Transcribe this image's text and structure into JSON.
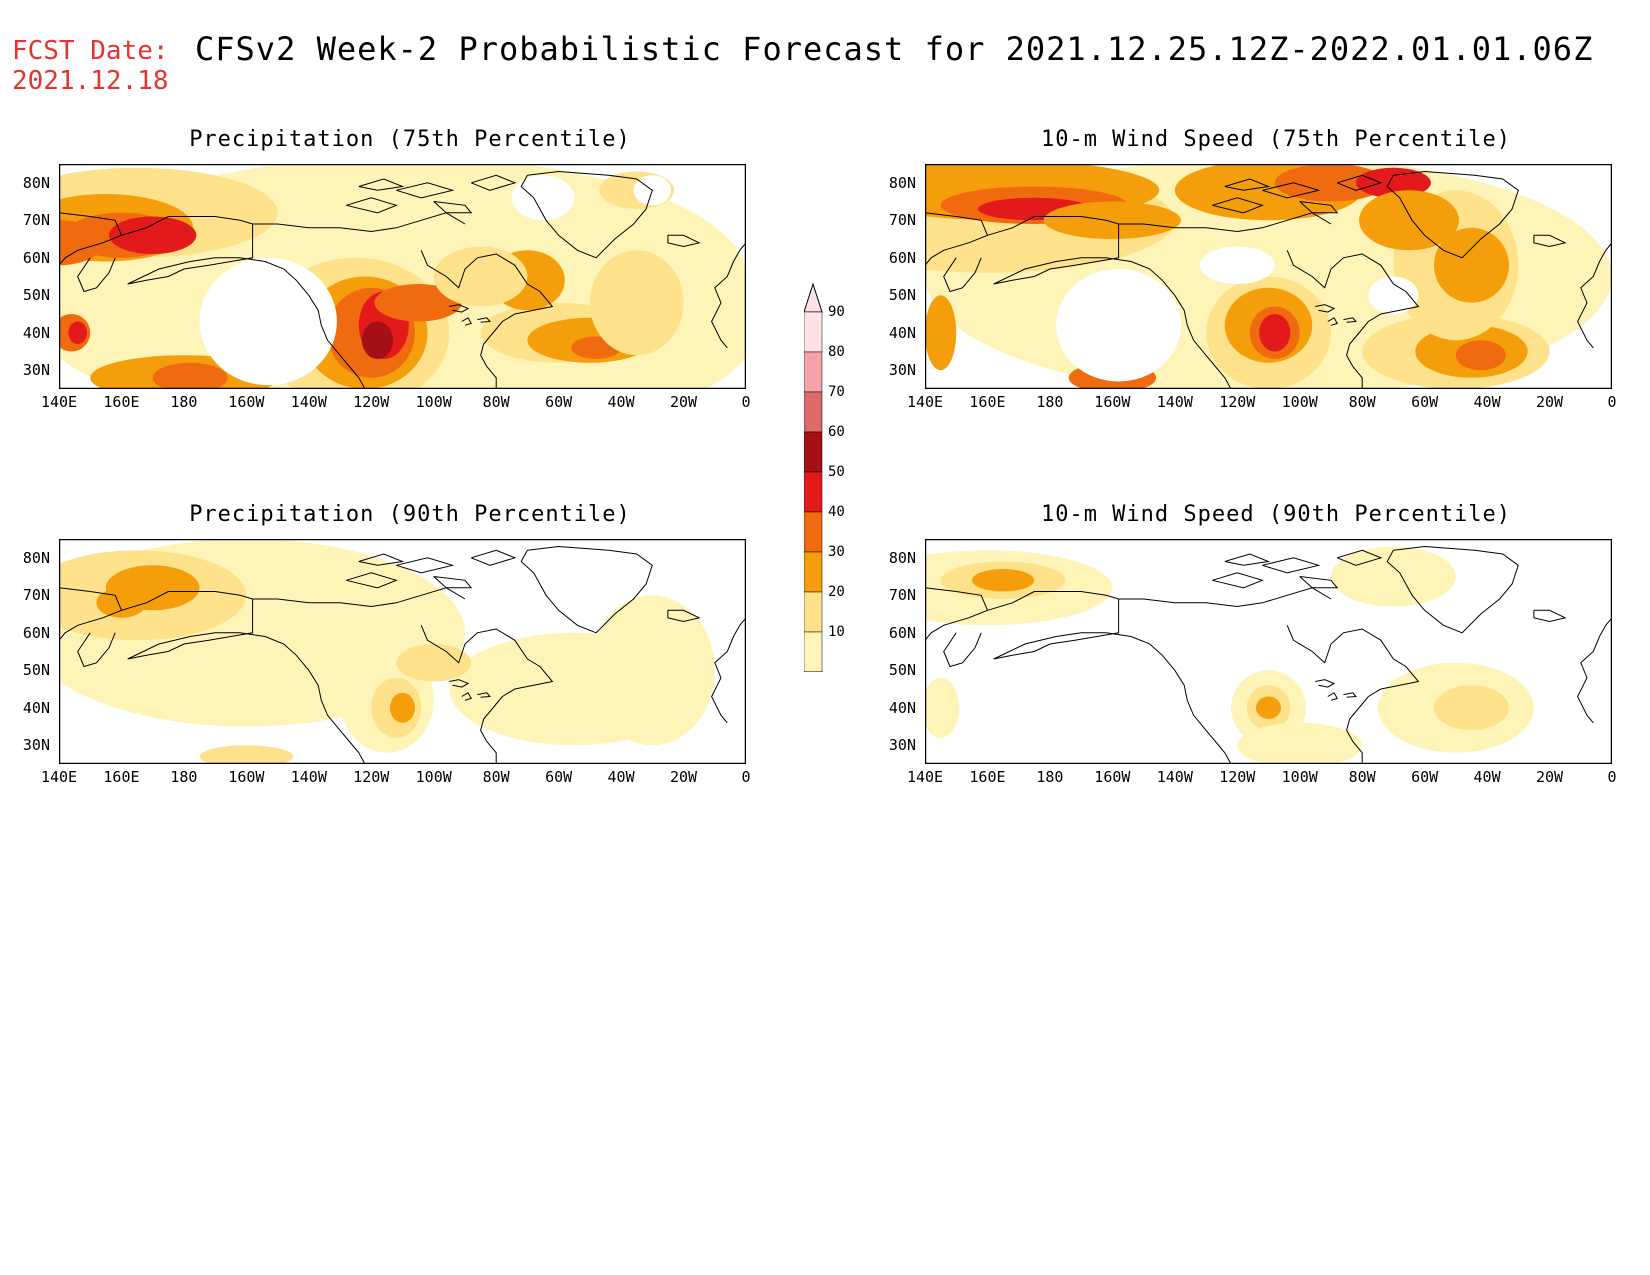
{
  "header": {
    "fcst_label": "FCST Date:",
    "fcst_date": "2021.12.18",
    "title": "CFSv2 Week-2 Probabilistic Forecast for 2021.12.25.12Z-2022.01.01.06Z"
  },
  "axes": {
    "lat_labels": [
      "80N",
      "70N",
      "60N",
      "50N",
      "40N",
      "30N"
    ],
    "lon_labels": [
      "140E",
      "160E",
      "180",
      "160W",
      "140W",
      "120W",
      "100W",
      "80W",
      "60W",
      "40W",
      "20W",
      "0"
    ]
  },
  "panels": [
    {
      "id": "precip75",
      "title": "Precipitation (75th Percentile)"
    },
    {
      "id": "wind75",
      "title": "10-m Wind Speed (75th Percentile)"
    },
    {
      "id": "precip90",
      "title": "Precipitation (90th Percentile)"
    },
    {
      "id": "wind90",
      "title": "10-m Wind Speed (90th Percentile)"
    }
  ],
  "colorbar": {
    "levels": [
      "90",
      "80",
      "70",
      "60",
      "50",
      "40",
      "30",
      "20",
      "10"
    ],
    "colors": [
      "#ffe1e6",
      "#f4a3aa",
      "#dc6a6a",
      "#a50f15",
      "#e31a1c",
      "#f06a0f",
      "#f59e0b",
      "#fde28b",
      "#fff4b8"
    ]
  }
}
